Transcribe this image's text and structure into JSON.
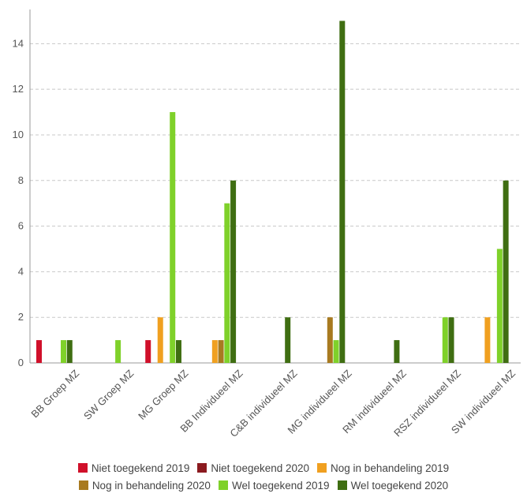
{
  "chart_data": {
    "type": "bar",
    "title": "",
    "xlabel": "",
    "ylabel": "",
    "ylim": [
      0,
      15.5
    ],
    "yticks": [
      0,
      2,
      4,
      6,
      8,
      10,
      12,
      14
    ],
    "grid": true,
    "legend_position": "bottom",
    "categories": [
      "BB Groep MZ",
      "SW Groep MZ",
      "MG Groep MZ",
      "BB Individueel MZ",
      "C&B individueel MZ",
      "MG individueel MZ",
      "RM individueel MZ",
      "RSZ individueel MZ",
      "SW individueel MZ"
    ],
    "series": [
      {
        "name": "Niet toegekend 2019",
        "color": "#d0102a",
        "values": [
          1,
          0,
          1,
          0,
          0,
          0,
          0,
          0,
          0
        ]
      },
      {
        "name": "Niet toegekend 2020",
        "color": "#8b1a1f",
        "values": [
          0,
          0,
          0,
          0,
          0,
          0,
          0,
          0,
          0
        ]
      },
      {
        "name": "Nog in behandeling 2019",
        "color": "#f0a020",
        "values": [
          0,
          0,
          2,
          1,
          0,
          0,
          0,
          0,
          2
        ]
      },
      {
        "name": "Nog in behandeling 2020",
        "color": "#a87a20",
        "values": [
          0,
          0,
          0,
          1,
          0,
          2,
          0,
          0,
          0
        ]
      },
      {
        "name": "Wel toegekend 2019",
        "color": "#7fd12a",
        "values": [
          1,
          1,
          11,
          7,
          0,
          1,
          0,
          2,
          5
        ]
      },
      {
        "name": "Wel toegekend 2020",
        "color": "#3f6e12",
        "values": [
          1,
          0,
          1,
          8,
          2,
          15,
          1,
          2,
          8
        ]
      }
    ]
  }
}
